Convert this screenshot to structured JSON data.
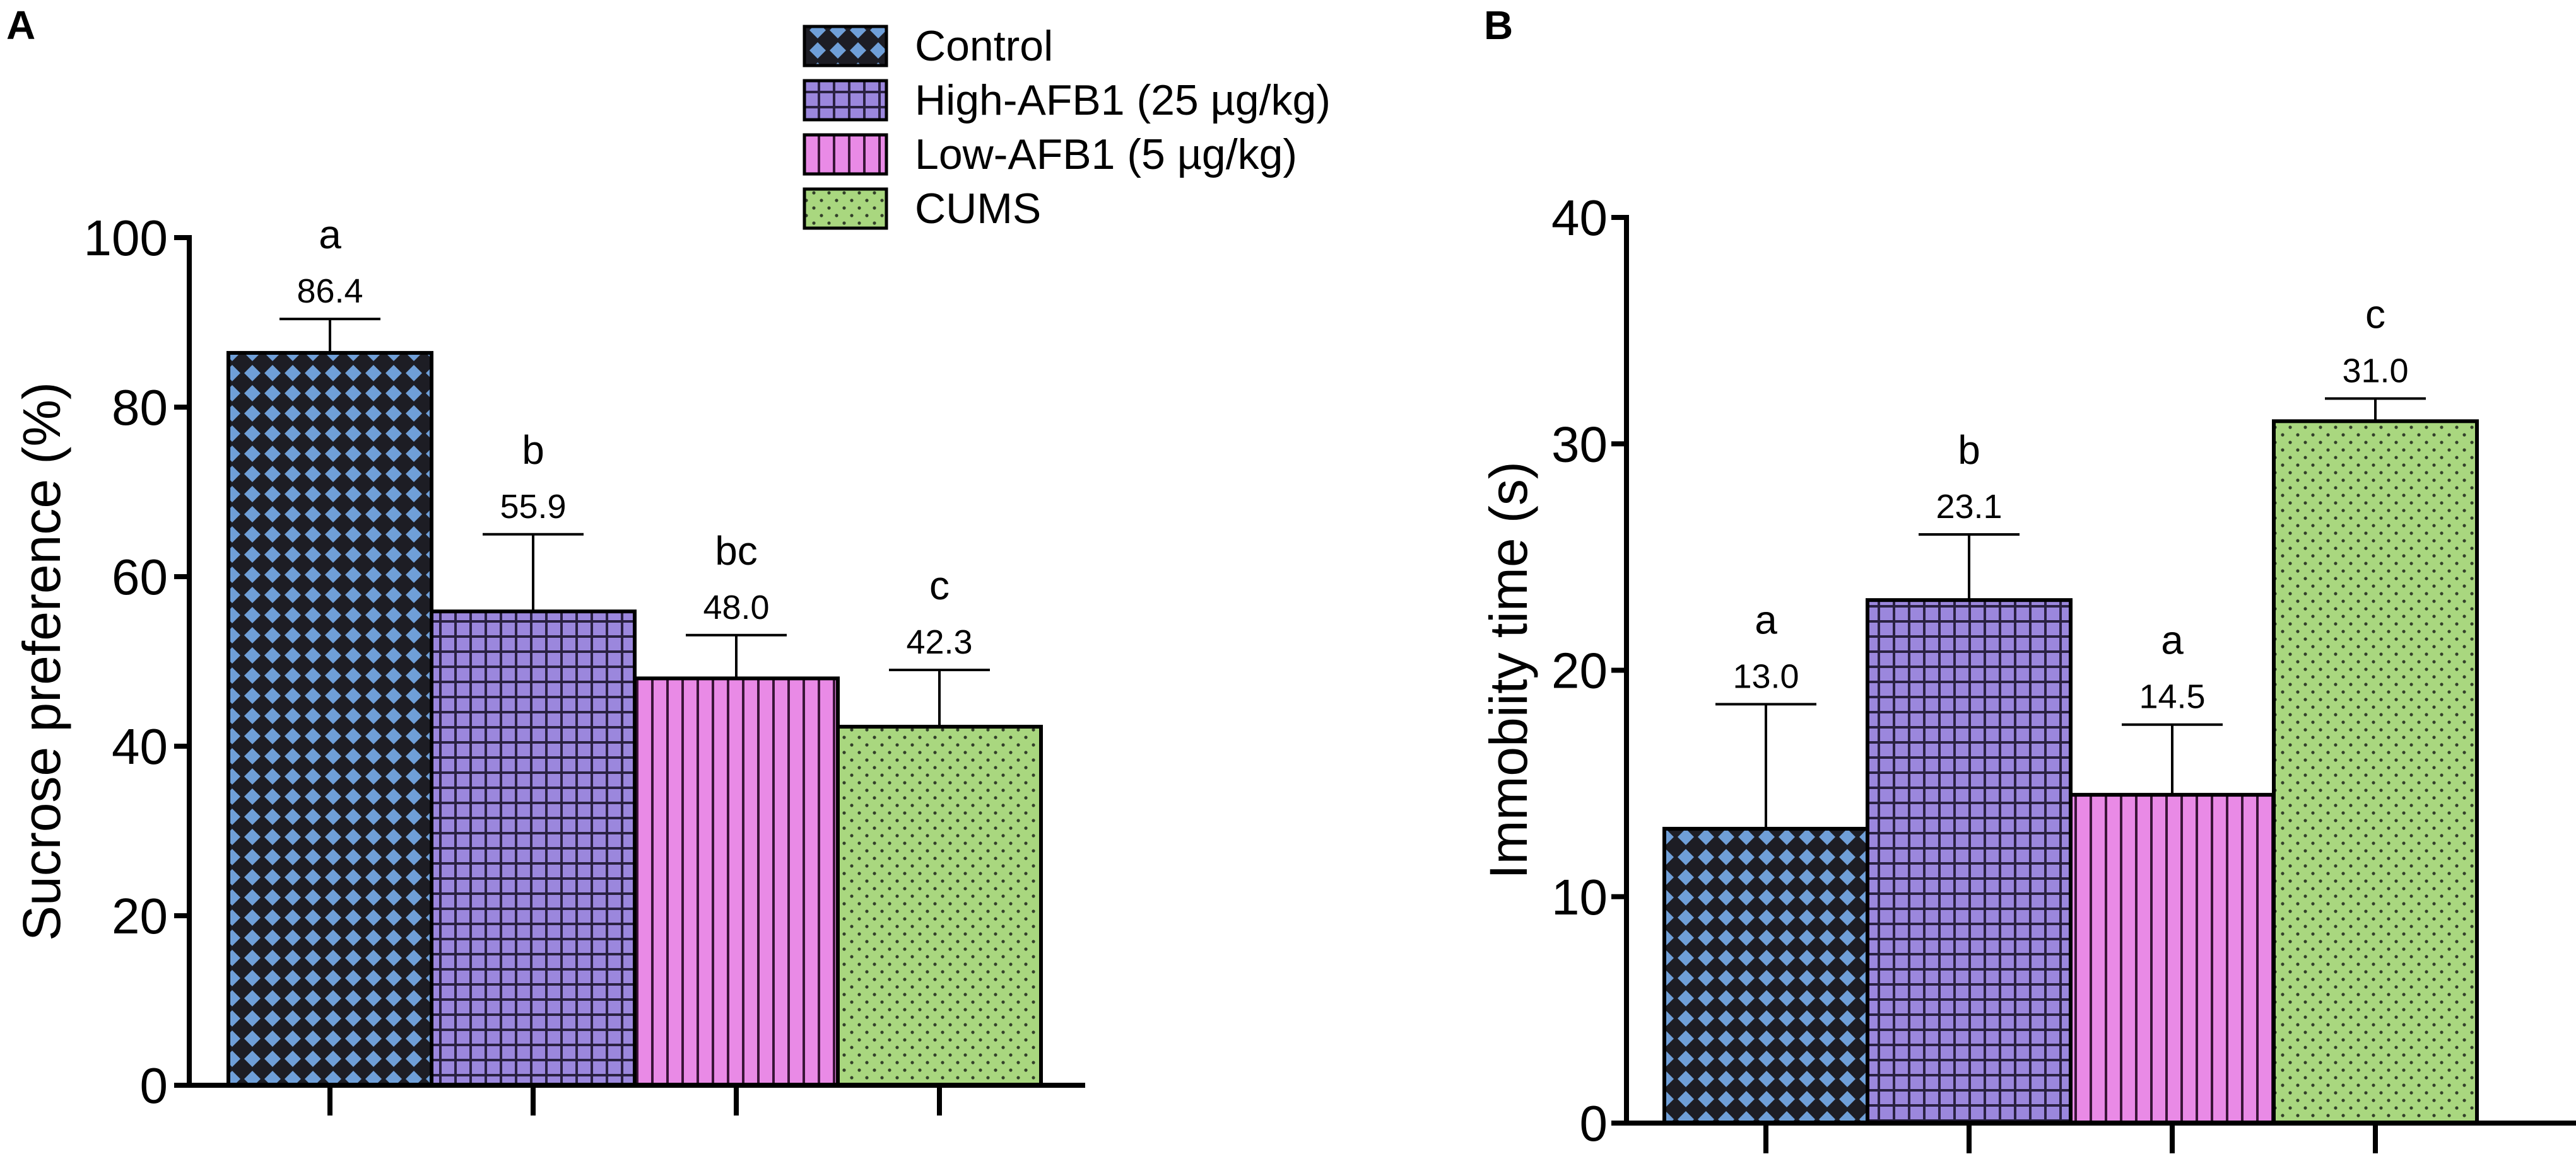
{
  "chart_data": [
    {
      "type": "bar",
      "panel": "A",
      "categories": [
        "Control",
        "High-AFB1 (25 µg/kg)",
        "Low-AFB1 (5 µg/kg)",
        "CUMS"
      ],
      "values": [
        86.4,
        55.9,
        48.0,
        42.3
      ],
      "value_labels": [
        "86.4",
        "55.9",
        "48.0",
        "42.3"
      ],
      "error_upper": [
        90.4,
        65.0,
        53.1,
        49.0
      ],
      "significance_letters": [
        "a",
        "b",
        "bc",
        "c"
      ],
      "ylabel": "Sucrose preference (%)",
      "xlabel": "",
      "ylim": [
        0,
        100
      ],
      "yticks": [
        0,
        20,
        40,
        60,
        80,
        100
      ],
      "legend_position": "top-right"
    },
    {
      "type": "bar",
      "panel": "B",
      "categories": [
        "Control",
        "High-AFB1 (25 µg/kg)",
        "Low-AFB1 (5 µg/kg)",
        "CUMS"
      ],
      "values": [
        13.0,
        23.1,
        14.5,
        31.0
      ],
      "value_labels": [
        "13.0",
        "23.1",
        "14.5",
        "31.0"
      ],
      "error_upper": [
        18.5,
        26.0,
        17.6,
        32.0
      ],
      "significance_letters": [
        "a",
        "b",
        "a",
        "c"
      ],
      "ylabel": "Immobiity time (s)",
      "xlabel": "",
      "ylim": [
        0,
        40
      ],
      "yticks": [
        0,
        10,
        20,
        30,
        40
      ]
    }
  ],
  "legend": [
    {
      "label": "Control",
      "color": "#6f9fd8",
      "pattern": "diamond-check"
    },
    {
      "label": "High-AFB1 (25 µg/kg)",
      "color": "#9b87dd",
      "pattern": "grid"
    },
    {
      "label": "Low-AFB1 (5 µg/kg)",
      "color": "#e98ae6",
      "pattern": "vertical-lines"
    },
    {
      "label": "CUMS",
      "color": "#a9d77f",
      "pattern": "dots"
    }
  ]
}
